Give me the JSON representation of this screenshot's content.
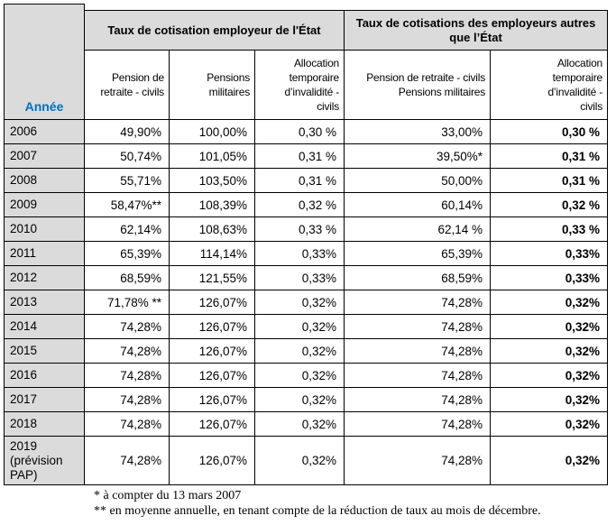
{
  "table": {
    "corner_header": "Année",
    "group_headers": [
      "Taux de cotisation employeur de l'État",
      "Taux de cotisations des employeurs autres\nque l’État"
    ],
    "sub_headers": [
      "Pension de\nretraite - civils",
      "Pensions\nmilitaires",
      "Allocation\ntemporaire\nd’invalidité -\ncivils",
      "Pension de retraite - civils\nPensions militaires",
      "Allocation\ntemporaire\nd’invalidité -\ncivils"
    ],
    "rows": [
      {
        "year": "2006",
        "values": [
          "49,90%",
          "100,00%",
          "0,30 %",
          "33,00%",
          "0,30 %"
        ]
      },
      {
        "year": "2007",
        "values": [
          "50,74%",
          "101,05%",
          "0,31 %",
          "39,50%*",
          "0,31 %"
        ]
      },
      {
        "year": "2008",
        "values": [
          "55,71%",
          "103,50%",
          "0,31 %",
          "50,00%",
          "0,31 %"
        ]
      },
      {
        "year": "2009",
        "values": [
          "58,47%**",
          "108,39%",
          "0,32 %",
          "60,14%",
          "0,32 %"
        ]
      },
      {
        "year": "2010",
        "values": [
          "62,14%",
          "108,63%",
          "0,33 %",
          "62,14 %",
          "0,33 %"
        ]
      },
      {
        "year": "2011",
        "values": [
          "65,39%",
          "114,14%",
          "0,33%",
          "65,39%",
          "0,33%"
        ]
      },
      {
        "year": "2012",
        "values": [
          "68,59%",
          "121,55%",
          "0,33%",
          "68,59%",
          "0,33%"
        ]
      },
      {
        "year": "2013",
        "values": [
          "71,78% **",
          "126,07%",
          "0,32%",
          "74,28%",
          "0,32%"
        ]
      },
      {
        "year": "2014",
        "values": [
          "74,28%",
          "126,07%",
          "0,32%",
          "74,28%",
          "0,32%"
        ]
      },
      {
        "year": "2015",
        "values": [
          "74,28%",
          "126,07%",
          "0,32%",
          "74,28%",
          "0,32%"
        ]
      },
      {
        "year": "2016",
        "values": [
          "74,28%",
          "126,07%",
          "0,32%",
          "74,28%",
          "0,32%"
        ]
      },
      {
        "year": "2017",
        "values": [
          "74,28%",
          "126,07%",
          "0,32%",
          "74,28%",
          "0,32%"
        ]
      },
      {
        "year": "2018",
        "values": [
          "74,28%",
          "126,07%",
          "0,32%",
          "74,28%",
          "0,32%"
        ]
      },
      {
        "year": "2019\n(prévision\nPAP)",
        "values": [
          "74,28%",
          "126,07%",
          "0,32%",
          "74,28%",
          "0,32%"
        ]
      }
    ]
  },
  "footnotes": [
    "* à compter du 13 mars 2007",
    "** en moyenne annuelle, en tenant compte de la réduction de taux au mois de décembre."
  ],
  "colors": {
    "header_bg": "#dbdbdb",
    "year_header_text": "#0070c0",
    "table_border": "#000000"
  }
}
